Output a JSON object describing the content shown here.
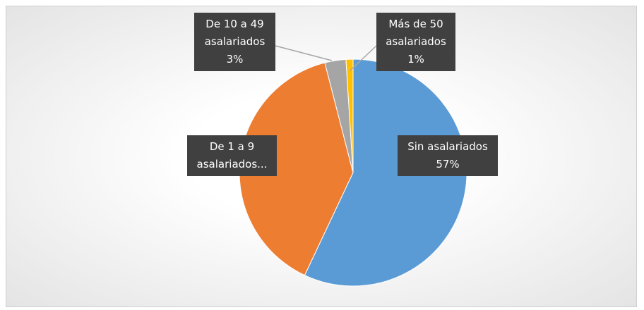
{
  "chart_data": {
    "type": "pie",
    "categories": [
      "Sin asalariados",
      "De 1 a 9 asalariados...",
      "De 10 a 49 asalariados",
      "Más de 50 asalariados"
    ],
    "values": [
      57,
      39,
      3,
      1
    ],
    "value_labels": [
      "57%",
      null,
      "3%",
      "1%"
    ],
    "colors": [
      "#5b9bd5",
      "#ed7d31",
      "#a5a5a5",
      "#ffc000"
    ]
  }
}
